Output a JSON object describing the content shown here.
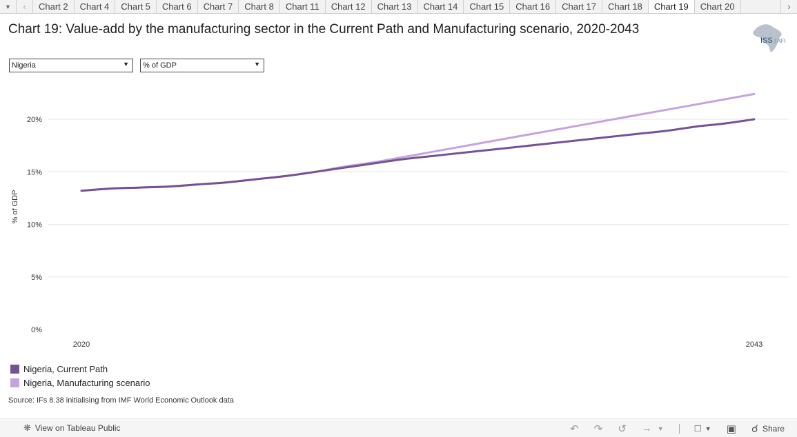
{
  "tabs": {
    "items": [
      "Chart 2",
      "Chart 4",
      "Chart 5",
      "Chart 6",
      "Chart 7",
      "Chart 8",
      "Chart 11",
      "Chart 12",
      "Chart 13",
      "Chart 14",
      "Chart 15",
      "Chart 16",
      "Chart 17",
      "Chart 18",
      "Chart 19",
      "Chart 20"
    ],
    "active_index": 14
  },
  "title": "Chart 19: Value-add by the manufacturing sector in the Current Path and Manufacturing scenario, 2020-2043",
  "logo": {
    "main": "ISS",
    "sub": "AFI",
    "color": "#2d4a7a"
  },
  "filters": {
    "country": "Nigeria",
    "measure": "% of GDP"
  },
  "chart_data": {
    "type": "line",
    "ylabel": "% of GDP",
    "xlabel": "",
    "ylim": [
      0,
      24
    ],
    "yticks": [
      0,
      5,
      10,
      15,
      20
    ],
    "ytick_labels": [
      "0%",
      "5%",
      "10%",
      "15%",
      "20%"
    ],
    "xlim": [
      2020,
      2043
    ],
    "xtick_labels": [
      "2020",
      "2043"
    ],
    "grid": true,
    "legend_position": "bottom-left",
    "series": [
      {
        "name": "Nigeria, Current Path",
        "color": "#745294",
        "x": [
          2020,
          2021,
          2022,
          2023,
          2024,
          2025,
          2026,
          2027,
          2028,
          2029,
          2030,
          2031,
          2032,
          2033,
          2034,
          2035,
          2036,
          2037,
          2038,
          2039,
          2040,
          2041,
          2042,
          2043
        ],
        "values": [
          13.2,
          13.4,
          13.5,
          13.6,
          13.8,
          14.0,
          14.3,
          14.6,
          15.0,
          15.4,
          15.8,
          16.2,
          16.5,
          16.8,
          17.1,
          17.4,
          17.7,
          18.0,
          18.3,
          18.6,
          18.9,
          19.3,
          19.6,
          20.0
        ]
      },
      {
        "name": "Nigeria, Manufacturing scenario",
        "color": "#c4a3df",
        "x": [
          2020,
          2021,
          2022,
          2023,
          2024,
          2025,
          2026,
          2027,
          2028,
          2029,
          2030,
          2031,
          2032,
          2033,
          2034,
          2035,
          2036,
          2037,
          2038,
          2039,
          2040,
          2041,
          2042,
          2043
        ],
        "values": [
          13.2,
          13.4,
          13.5,
          13.6,
          13.8,
          14.0,
          14.3,
          14.6,
          15.0,
          15.5,
          15.9,
          16.4,
          16.9,
          17.4,
          17.9,
          18.4,
          18.9,
          19.4,
          19.9,
          20.4,
          20.9,
          21.4,
          21.9,
          22.4
        ]
      }
    ]
  },
  "source": "Source: IFs 8.38 initialising from IMF World Economic Outlook data",
  "footer": {
    "tableau_link": "View on Tableau Public",
    "share_label": "Share"
  },
  "colors": {
    "gridline": "#e6e6e6"
  }
}
